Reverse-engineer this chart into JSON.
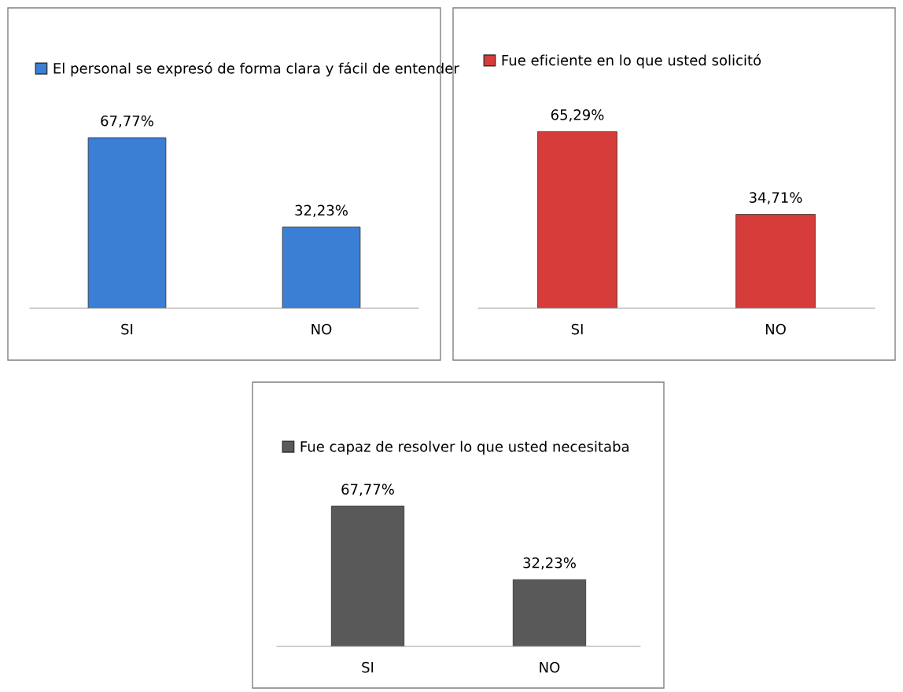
{
  "chart_data": [
    {
      "type": "bar",
      "categories": [
        "SI",
        "NO"
      ],
      "series": [
        {
          "name": "El personal se expresó de forma clara y fácil de entender",
          "color": "#3b7fd4",
          "values": [
            67.77,
            32.23
          ],
          "value_labels": [
            "67,77%",
            "32,23%"
          ]
        }
      ],
      "legend": "top"
    },
    {
      "type": "bar",
      "categories": [
        "SI",
        "NO"
      ],
      "series": [
        {
          "name": "Fue eficiente en lo que usted solicitó",
          "color": "#d63c3a",
          "values": [
            65.29,
            34.71
          ],
          "value_labels": [
            "65,29%",
            "34,71%"
          ]
        }
      ],
      "legend": "top"
    },
    {
      "type": "bar",
      "categories": [
        "SI",
        "NO"
      ],
      "series": [
        {
          "name": "Fue capaz de resolver lo que usted necesitaba",
          "color": "#595959",
          "values": [
            67.77,
            32.23
          ],
          "value_labels": [
            "67,77%",
            "32,23%"
          ]
        }
      ],
      "legend": "top"
    }
  ]
}
